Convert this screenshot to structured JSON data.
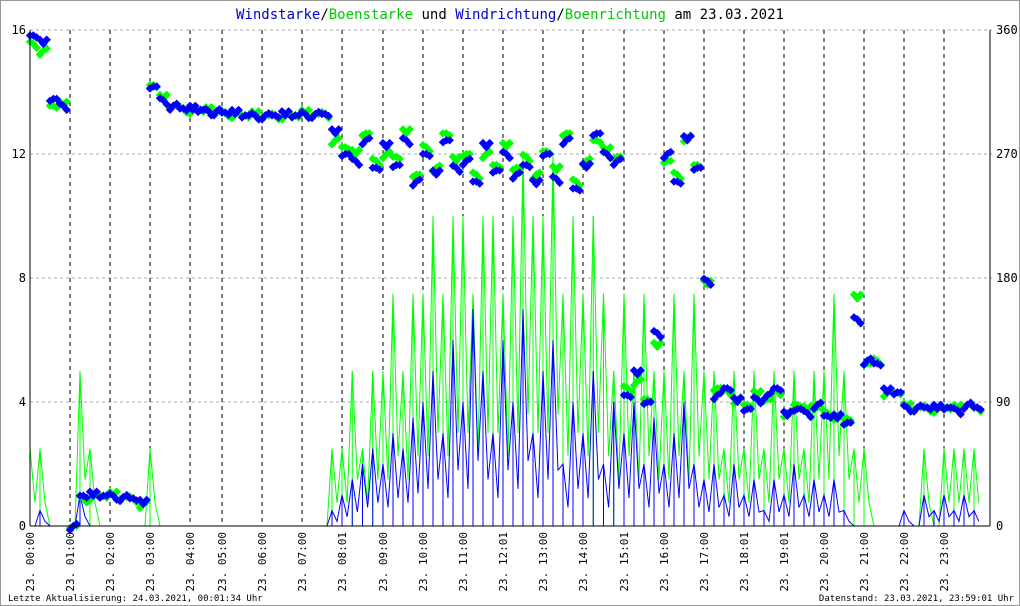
{
  "chart_data": {
    "type": "line",
    "title_parts": [
      {
        "text": "Windstarke",
        "color": "#0000cc"
      },
      {
        "text": "/",
        "color": "#000000"
      },
      {
        "text": "Boenstarke",
        "color": "#00cc00"
      },
      {
        "text": " und ",
        "color": "#000000"
      },
      {
        "text": "Windrichtung",
        "color": "#0000cc"
      },
      {
        "text": "/",
        "color": "#000000"
      },
      {
        "text": "Boenrichtung",
        "color": "#00cc00"
      },
      {
        "text": " am 23.03.2021",
        "color": "#000000"
      }
    ],
    "y_left": {
      "range": [
        0,
        16
      ],
      "ticks": [
        "0",
        "4",
        "8",
        "12",
        "16"
      ]
    },
    "y_right": {
      "range": [
        0,
        360
      ],
      "ticks": [
        "0",
        "90",
        "180",
        "270",
        "360"
      ]
    },
    "x_tick_labels": [
      "23. 00:00",
      "23. 01:00",
      "23. 02:00",
      "23. 03:00",
      "23. 04:00",
      "23. 05:00",
      "23. 06:00",
      "23. 07:00",
      "23. 08:01",
      "23. 09:00",
      "23. 10:00",
      "23. 11:00",
      "23. 12:01",
      "23. 13:00",
      "23. 14:00",
      "23. 15:01",
      "23. 16:00",
      "23. 17:00",
      "23. 18:01",
      "23. 19:01",
      "23. 20:00",
      "23. 21:00",
      "23. 22:00",
      "23. 23:00"
    ],
    "x_unit": "hour",
    "x_step_hours": 0.25,
    "grid": true,
    "colors": {
      "wind": "#0000ff",
      "gust": "#00ff00",
      "grid": "#aaaaaa"
    },
    "series": [
      {
        "name": "Windstarke",
        "axis": "left",
        "style": "line",
        "values": [
          0,
          0.5,
          0,
          0,
          0,
          1,
          0,
          0,
          0,
          0,
          0,
          0,
          0,
          0,
          0,
          0,
          0,
          0,
          0,
          0,
          0,
          0,
          0,
          0,
          0,
          0,
          0,
          0,
          0,
          0,
          0,
          0.5,
          1,
          1.5,
          2,
          2.5,
          2,
          3,
          2.5,
          3.5,
          4,
          5,
          3,
          6,
          4,
          7,
          5,
          3,
          6,
          4,
          7,
          3,
          5,
          6,
          2,
          4,
          3,
          5,
          2,
          4,
          3,
          4,
          2,
          3.5,
          2,
          3,
          4,
          2,
          1.5,
          2,
          1,
          2,
          1,
          1.5,
          0.5,
          1.5,
          1,
          2,
          1,
          1.5,
          1,
          1.5,
          0.5,
          0,
          0,
          0,
          0,
          0,
          0.5,
          0,
          1,
          0.5,
          1,
          0.5,
          1,
          0.5
        ]
      },
      {
        "name": "Boenstarke",
        "axis": "left",
        "style": "line",
        "values": [
          2.5,
          2.5,
          0,
          0,
          0,
          5,
          2.5,
          0,
          0,
          0,
          0,
          0,
          2.5,
          0,
          0,
          0,
          0,
          0,
          0,
          0,
          0,
          0,
          0,
          0,
          0,
          0,
          0,
          0,
          0,
          0,
          0,
          2.5,
          2.5,
          5,
          2.5,
          5,
          5,
          7.5,
          5,
          7.5,
          7.5,
          10,
          7.5,
          10,
          10,
          7.5,
          10,
          10,
          7.5,
          10,
          12,
          10,
          10,
          12,
          7.5,
          10,
          7.5,
          10,
          7.5,
          5,
          7.5,
          5,
          7.5,
          5,
          5,
          7.5,
          5,
          7.5,
          5,
          5,
          2.5,
          5,
          2.5,
          5,
          2.5,
          5,
          2.5,
          5,
          2.5,
          5,
          5,
          7.5,
          5,
          2.5,
          2.5,
          0,
          0,
          0,
          0,
          0,
          2.5,
          0,
          2.5,
          2.5,
          2.5,
          2.5
        ]
      },
      {
        "name": "Windrichtung",
        "axis": "right",
        "style": "points",
        "values": [
          356,
          350,
          310,
          305,
          0,
          22,
          22,
          22,
          22,
          21,
          20,
          16,
          319,
          309,
          305,
          303,
          302,
          302,
          301,
          301,
          300,
          299,
          298,
          298,
          298,
          298,
          298,
          298,
          299,
          299,
          299,
          285,
          270,
          265,
          280,
          260,
          275,
          262,
          280,
          250,
          270,
          255,
          280,
          260,
          265,
          250,
          275,
          258,
          270,
          255,
          262,
          248,
          270,
          252,
          280,
          245,
          260,
          285,
          270,
          265,
          95,
          110,
          90,
          140,
          270,
          250,
          280,
          260,
          178,
          95,
          100,
          90,
          85,
          92,
          95,
          100,
          80,
          85,
          82,
          88,
          80,
          78,
          75,
          150,
          120,
          118,
          97,
          97,
          86,
          86,
          86,
          85,
          86,
          84,
          88,
          86
        ]
      },
      {
        "name": "Boenrichtung",
        "axis": "right",
        "style": "points",
        "values": [
          350,
          345,
          305,
          305,
          0,
          20,
          22,
          22,
          22,
          21,
          20,
          16,
          320,
          310,
          305,
          303,
          302,
          302,
          301,
          301,
          300,
          299,
          298,
          298,
          298,
          298,
          298,
          298,
          299,
          299,
          299,
          280,
          275,
          270,
          285,
          265,
          270,
          268,
          285,
          255,
          275,
          260,
          285,
          265,
          270,
          255,
          270,
          262,
          275,
          260,
          268,
          255,
          272,
          258,
          285,
          250,
          265,
          280,
          272,
          268,
          100,
          105,
          92,
          130,
          265,
          255,
          282,
          262,
          175,
          100,
          98,
          92,
          88,
          95,
          92,
          98,
          82,
          88,
          84,
          86,
          82,
          80,
          78,
          165,
          118,
          120,
          97,
          97,
          86,
          86,
          86,
          85,
          86,
          85,
          88,
          86
        ]
      }
    ]
  },
  "footer": {
    "left": "Letzte Aktualisierung: 24.03.2021, 00:01:34 Uhr",
    "right": "Datenstand: 23.03.2021, 23:59:01 Uhr"
  }
}
